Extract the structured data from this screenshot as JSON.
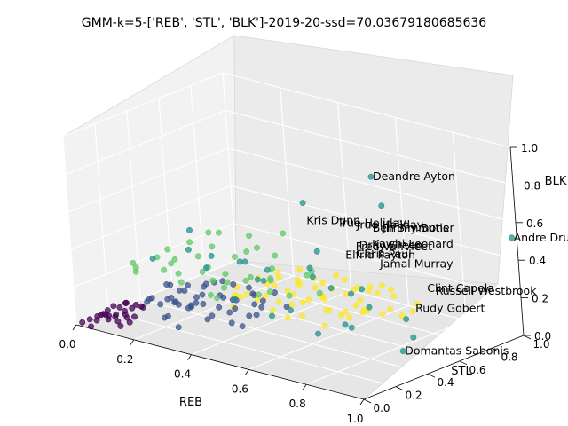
{
  "chart_data": {
    "type": "scatter",
    "title": "GMM-k=5-['REB', 'STL', 'BLK']-2019-20-ssd=70.03679180685636",
    "xlabel": "REB",
    "ylabel": "STL",
    "zlabel": "BLK",
    "xlim": [
      0,
      1
    ],
    "ylim": [
      0,
      1
    ],
    "zlim": [
      0,
      1
    ],
    "x_ticks": [
      "0.0",
      "0.2",
      "0.4",
      "0.6",
      "0.8",
      "1.0"
    ],
    "y_ticks": [
      "0.0",
      "0.2",
      "0.4",
      "0.6",
      "0.8",
      "1.0"
    ],
    "z_ticks": [
      "0.0",
      "0.2",
      "0.4",
      "0.6",
      "0.8",
      "1.0"
    ],
    "grid": true,
    "cluster_colors": [
      "#440154",
      "#3b528b",
      "#21918c",
      "#5ec962",
      "#fde725"
    ],
    "annotations": [
      {
        "text": "Deandre Ayton",
        "x": 0.79,
        "y": 0.5,
        "z": 0.93
      },
      {
        "text": "Andre Drummond",
        "x": 1.0,
        "y": 0.97,
        "z": 0.53
      },
      {
        "text": "Domantas Sabonis",
        "x": 0.93,
        "y": 0.38,
        "z": 0.1
      },
      {
        "text": "Kris Dunn",
        "x": 0.3,
        "y": 0.92,
        "z": 0.36
      },
      {
        "text": "True Holiday",
        "x": 0.42,
        "y": 0.9,
        "z": 0.4
      },
      {
        "text": "Jrue Holiday",
        "x": 0.47,
        "y": 0.93,
        "z": 0.4
      },
      {
        "text": "Ben Simmons",
        "x": 0.52,
        "y": 0.94,
        "z": 0.4
      },
      {
        "text": "Jimmy Butler",
        "x": 0.55,
        "y": 0.95,
        "z": 0.41
      },
      {
        "text": "Kawhi Leonard",
        "x": 0.52,
        "y": 0.93,
        "z": 0.32
      },
      {
        "text": "Fred VanVleet",
        "x": 0.45,
        "y": 0.95,
        "z": 0.27
      },
      {
        "text": "Dray Green",
        "x": 0.48,
        "y": 0.92,
        "z": 0.3
      },
      {
        "text": "Clint Capela",
        "x": 0.85,
        "y": 0.68,
        "z": 0.3
      },
      {
        "text": "Chris Paul",
        "x": 0.44,
        "y": 0.97,
        "z": 0.22
      },
      {
        "text": "Rudy Gobert",
        "x": 0.85,
        "y": 0.6,
        "z": 0.22
      },
      {
        "text": "Elfrid Payton",
        "x": 0.4,
        "y": 0.97,
        "z": 0.2
      },
      {
        "text": "Jamal Murray",
        "x": 0.52,
        "y": 0.97,
        "z": 0.2
      },
      {
        "text": "Russell Westbrook",
        "x": 0.78,
        "y": 0.85,
        "z": 0.2
      }
    ],
    "series": [
      {
        "points": [
          [
            0.02,
            0.05,
            0.02
          ],
          [
            0.03,
            0.08,
            0.03
          ],
          [
            0.01,
            0.02,
            0.01
          ],
          [
            0.04,
            0.1,
            0.04
          ],
          [
            0.02,
            0.12,
            0.02
          ],
          [
            0.05,
            0.04,
            0.03
          ],
          [
            0.03,
            0.15,
            0.01
          ],
          [
            0.06,
            0.08,
            0.05
          ],
          [
            0.01,
            0.18,
            0.02
          ],
          [
            0.04,
            0.02,
            0.0
          ],
          [
            0.07,
            0.12,
            0.03
          ],
          [
            0.02,
            0.2,
            0.04
          ],
          [
            0.05,
            0.16,
            0.02
          ],
          [
            0.08,
            0.06,
            0.04
          ],
          [
            0.03,
            0.22,
            0.03
          ],
          [
            0.06,
            0.2,
            0.01
          ],
          [
            0.09,
            0.1,
            0.02
          ],
          [
            0.04,
            0.24,
            0.05
          ],
          [
            0.07,
            0.18,
            0.04
          ],
          [
            0.1,
            0.14,
            0.03
          ],
          [
            0.05,
            0.26,
            0.02
          ],
          [
            0.08,
            0.22,
            0.0
          ],
          [
            0.11,
            0.08,
            0.01
          ],
          [
            0.02,
            0.28,
            0.03
          ],
          [
            0.06,
            0.3,
            0.02
          ],
          [
            0.09,
            0.26,
            0.04
          ],
          [
            0.12,
            0.12,
            0.02
          ],
          [
            0.03,
            0.32,
            0.01
          ]
        ]
      },
      {
        "points": [
          [
            0.1,
            0.3,
            0.08
          ],
          [
            0.12,
            0.25,
            0.1
          ],
          [
            0.15,
            0.35,
            0.06
          ],
          [
            0.18,
            0.28,
            0.12
          ],
          [
            0.2,
            0.4,
            0.09
          ],
          [
            0.14,
            0.2,
            0.11
          ],
          [
            0.22,
            0.33,
            0.07
          ],
          [
            0.16,
            0.42,
            0.13
          ],
          [
            0.25,
            0.26,
            0.1
          ],
          [
            0.19,
            0.38,
            0.05
          ],
          [
            0.28,
            0.3,
            0.12
          ],
          [
            0.13,
            0.45,
            0.08
          ],
          [
            0.23,
            0.22,
            0.14
          ],
          [
            0.3,
            0.36,
            0.09
          ],
          [
            0.17,
            0.5,
            0.1
          ],
          [
            0.26,
            0.44,
            0.11
          ],
          [
            0.32,
            0.28,
            0.08
          ],
          [
            0.21,
            0.18,
            0.06
          ],
          [
            0.34,
            0.4,
            0.13
          ],
          [
            0.11,
            0.4,
            0.12
          ],
          [
            0.27,
            0.5,
            0.07
          ],
          [
            0.36,
            0.32,
            0.1
          ],
          [
            0.24,
            0.15,
            0.09
          ],
          [
            0.29,
            0.24,
            0.15
          ],
          [
            0.38,
            0.44,
            0.11
          ],
          [
            0.15,
            0.55,
            0.09
          ],
          [
            0.33,
            0.52,
            0.12
          ],
          [
            0.4,
            0.26,
            0.08
          ],
          [
            0.2,
            0.3,
            0.16
          ],
          [
            0.35,
            0.2,
            0.1
          ],
          [
            0.42,
            0.38,
            0.09
          ],
          [
            0.18,
            0.6,
            0.1
          ],
          [
            0.3,
            0.58,
            0.08
          ],
          [
            0.25,
            0.35,
            0.14
          ],
          [
            0.37,
            0.5,
            0.07
          ],
          [
            0.14,
            0.28,
            0.07
          ],
          [
            0.22,
            0.48,
            0.15
          ],
          [
            0.44,
            0.3,
            0.12
          ],
          [
            0.28,
            0.14,
            0.05
          ],
          [
            0.33,
            0.34,
            0.16
          ],
          [
            0.12,
            0.36,
            0.14
          ],
          [
            0.26,
            0.62,
            0.09
          ],
          [
            0.4,
            0.46,
            0.13
          ],
          [
            0.46,
            0.22,
            0.1
          ],
          [
            0.19,
            0.24,
            0.13
          ],
          [
            0.31,
            0.44,
            0.06
          ],
          [
            0.24,
            0.56,
            0.12
          ],
          [
            0.35,
            0.62,
            0.1
          ],
          [
            0.17,
            0.34,
            0.06
          ],
          [
            0.43,
            0.55,
            0.08
          ]
        ]
      },
      {
        "points": [
          [
            0.79,
            0.5,
            0.93
          ],
          [
            1.0,
            0.97,
            0.53
          ],
          [
            0.93,
            0.38,
            0.1
          ],
          [
            0.6,
            0.4,
            0.75
          ],
          [
            0.75,
            0.62,
            0.72
          ],
          [
            0.3,
            0.2,
            0.45
          ],
          [
            0.35,
            0.25,
            0.42
          ],
          [
            0.42,
            0.3,
            0.4
          ],
          [
            0.2,
            0.15,
            0.38
          ],
          [
            0.55,
            0.5,
            0.35
          ],
          [
            0.65,
            0.45,
            0.3
          ],
          [
            0.7,
            0.55,
            0.28
          ],
          [
            0.5,
            0.6,
            0.25
          ],
          [
            0.8,
            0.3,
            0.2
          ],
          [
            0.6,
            0.28,
            0.22
          ],
          [
            0.45,
            0.35,
            0.3
          ],
          [
            0.85,
            0.55,
            0.18
          ],
          [
            0.72,
            0.4,
            0.15
          ],
          [
            0.4,
            0.5,
            0.28
          ],
          [
            0.68,
            0.3,
            0.12
          ],
          [
            0.3,
            0.3,
            0.32
          ],
          [
            0.55,
            0.25,
            0.18
          ],
          [
            0.78,
            0.45,
            0.25
          ],
          [
            0.5,
            0.3,
            0.33
          ],
          [
            0.62,
            0.62,
            0.2
          ],
          [
            0.38,
            0.4,
            0.35
          ],
          [
            0.58,
            0.5,
            0.45
          ],
          [
            0.25,
            0.3,
            0.5
          ],
          [
            0.9,
            0.5,
            0.12
          ],
          [
            0.45,
            0.2,
            0.25
          ]
        ]
      },
      {
        "points": [
          [
            0.05,
            0.3,
            0.2
          ],
          [
            0.1,
            0.2,
            0.3
          ],
          [
            0.15,
            0.4,
            0.15
          ],
          [
            0.2,
            0.3,
            0.25
          ],
          [
            0.25,
            0.5,
            0.2
          ],
          [
            0.08,
            0.45,
            0.28
          ],
          [
            0.3,
            0.4,
            0.18
          ],
          [
            0.12,
            0.35,
            0.22
          ],
          [
            0.18,
            0.55,
            0.3
          ],
          [
            0.22,
            0.25,
            0.35
          ],
          [
            0.28,
            0.6,
            0.16
          ],
          [
            0.35,
            0.45,
            0.22
          ],
          [
            0.06,
            0.5,
            0.18
          ],
          [
            0.14,
            0.28,
            0.32
          ],
          [
            0.32,
            0.3,
            0.26
          ],
          [
            0.38,
            0.55,
            0.2
          ],
          [
            0.2,
            0.65,
            0.22
          ],
          [
            0.26,
            0.38,
            0.28
          ],
          [
            0.42,
            0.48,
            0.25
          ],
          [
            0.1,
            0.6,
            0.2
          ],
          [
            0.3,
            0.7,
            0.18
          ],
          [
            0.45,
            0.35,
            0.22
          ],
          [
            0.16,
            0.45,
            0.35
          ],
          [
            0.36,
            0.62,
            0.3
          ],
          [
            0.24,
            0.72,
            0.26
          ],
          [
            0.4,
            0.25,
            0.3
          ],
          [
            0.5,
            0.45,
            0.2
          ],
          [
            0.12,
            0.7,
            0.3
          ],
          [
            0.33,
            0.5,
            0.35
          ],
          [
            0.48,
            0.6,
            0.25
          ],
          [
            0.2,
            0.5,
            0.4
          ],
          [
            0.28,
            0.35,
            0.15
          ],
          [
            0.52,
            0.3,
            0.28
          ],
          [
            0.08,
            0.25,
            0.25
          ],
          [
            0.44,
            0.7,
            0.22
          ],
          [
            0.18,
            0.78,
            0.28
          ],
          [
            0.55,
            0.55,
            0.2
          ],
          [
            0.36,
            0.25,
            0.2
          ],
          [
            0.14,
            0.55,
            0.15
          ],
          [
            0.26,
            0.85,
            0.3
          ]
        ]
      },
      {
        "points": [
          [
            0.3,
            0.6,
            0.05
          ],
          [
            0.35,
            0.7,
            0.08
          ],
          [
            0.4,
            0.65,
            0.1
          ],
          [
            0.45,
            0.75,
            0.06
          ],
          [
            0.5,
            0.8,
            0.09
          ],
          [
            0.38,
            0.55,
            0.04
          ],
          [
            0.42,
            0.85,
            0.07
          ],
          [
            0.48,
            0.6,
            0.12
          ],
          [
            0.55,
            0.7,
            0.05
          ],
          [
            0.33,
            0.8,
            0.1
          ],
          [
            0.52,
            0.9,
            0.08
          ],
          [
            0.6,
            0.75,
            0.06
          ],
          [
            0.28,
            0.7,
            0.09
          ],
          [
            0.46,
            0.5,
            0.05
          ],
          [
            0.58,
            0.85,
            0.11
          ],
          [
            0.36,
            0.9,
            0.06
          ],
          [
            0.62,
            0.6,
            0.08
          ],
          [
            0.44,
            0.95,
            0.04
          ],
          [
            0.25,
            0.55,
            0.07
          ],
          [
            0.5,
            0.65,
            0.13
          ],
          [
            0.65,
            0.8,
            0.07
          ],
          [
            0.32,
            0.5,
            0.12
          ],
          [
            0.56,
            0.55,
            0.03
          ],
          [
            0.4,
            0.78,
            0.14
          ],
          [
            0.68,
            0.7,
            0.09
          ],
          [
            0.3,
            0.85,
            0.05
          ],
          [
            0.54,
            0.95,
            0.1
          ],
          [
            0.2,
            0.65,
            0.06
          ],
          [
            0.47,
            0.72,
            0.02
          ],
          [
            0.6,
            0.9,
            0.12
          ],
          [
            0.26,
            0.8,
            0.11
          ],
          [
            0.43,
            0.58,
            0.08
          ],
          [
            0.7,
            0.85,
            0.06
          ],
          [
            0.35,
            0.62,
            0.14
          ],
          [
            0.57,
            0.78,
            0.04
          ],
          [
            0.22,
            0.75,
            0.08
          ],
          [
            0.64,
            0.65,
            0.1
          ],
          [
            0.38,
            0.95,
            0.09
          ],
          [
            0.5,
            0.52,
            0.07
          ],
          [
            0.45,
            0.88,
            0.12
          ],
          [
            0.3,
            0.45,
            0.06
          ],
          [
            0.66,
            0.95,
            0.05
          ],
          [
            0.4,
            0.7,
            0.04
          ],
          [
            0.53,
            0.82,
            0.13
          ],
          [
            0.27,
            0.92,
            0.09
          ],
          [
            0.6,
            0.68,
            0.11
          ],
          [
            0.36,
            0.76,
            0.1
          ],
          [
            0.48,
            0.98,
            0.06
          ],
          [
            0.34,
            0.58,
            0.09
          ],
          [
            0.58,
            0.62,
            0.07
          ],
          [
            0.24,
            0.6,
            0.04
          ],
          [
            0.72,
            0.75,
            0.08
          ],
          [
            0.42,
            0.52,
            0.11
          ],
          [
            0.5,
            0.88,
            0.03
          ],
          [
            0.31,
            0.72,
            0.13
          ],
          [
            0.62,
            0.88,
            0.1
          ],
          [
            0.39,
            0.84,
            0.02
          ],
          [
            0.55,
            0.6,
            0.09
          ],
          [
            0.28,
            0.5,
            0.1
          ],
          [
            0.46,
            0.68,
            0.15
          ]
        ]
      }
    ]
  }
}
